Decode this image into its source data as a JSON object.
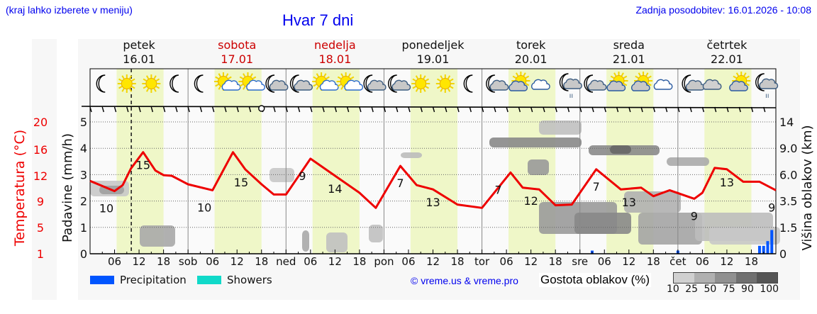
{
  "header": {
    "location_hint": "(kraj lahko izberete v meniju)",
    "title": "Hvar 7 dni",
    "updated": "Zadnja posodobitev: 16.01.2026 - 10:08"
  },
  "days": [
    {
      "name": "petek",
      "date": "16.01",
      "weekend": false,
      "short": ""
    },
    {
      "name": "sobota",
      "date": "17.01",
      "weekend": true,
      "short": "sob"
    },
    {
      "name": "nedelja",
      "date": "18.01",
      "weekend": true,
      "short": "ned"
    },
    {
      "name": "ponedeljek",
      "date": "19.01",
      "weekend": false,
      "short": "pon"
    },
    {
      "name": "torek",
      "date": "20.01",
      "weekend": false,
      "short": "tor"
    },
    {
      "name": "sreda",
      "date": "21.01",
      "weekend": false,
      "short": "sre"
    },
    {
      "name": "četrtek",
      "date": "22.01",
      "weekend": false,
      "short": "čet"
    }
  ],
  "weather_icons": [
    [
      "moon",
      "sun",
      "sun",
      "moon"
    ],
    [
      "moon",
      "sun-cloud",
      "sun-cloud",
      "moon-cloud"
    ],
    [
      "moon-cloud",
      "sun-cloud",
      "sun-cloud",
      "moon-cloud"
    ],
    [
      "moon-cloud",
      "sun",
      "sun",
      "moon"
    ],
    [
      "moon-cloud",
      "sun-cloud-grey",
      "cloud",
      "moon-cloud-rain"
    ],
    [
      "moon-cloud",
      "sun-cloud-grey",
      "sun-cloud-grey",
      "cloud"
    ],
    [
      "moon-cloud",
      "cloud-grey",
      "sun-cloud-grey",
      "moon-cloud-rain"
    ]
  ],
  "axes": {
    "left_temp_label": "Temperatura (°C)",
    "left_temp_ticks": [
      "20",
      "16",
      "12",
      "9",
      "5",
      "1"
    ],
    "precip_label": "Padavine (mm/h)",
    "precip_ticks": [
      "5",
      "4",
      "3",
      "2",
      "1",
      "0"
    ],
    "right_label": "Višina oblakov (km)",
    "right_ticks": [
      "14",
      "9.0",
      "6.0",
      "3.5",
      "1.5",
      "0"
    ],
    "hour_ticks": [
      "06",
      "12",
      "18"
    ]
  },
  "legend": {
    "precipitation": "Precipitation",
    "showers": "Showers",
    "precipitation_color": "#0055ff",
    "showers_color": "#11d9c9",
    "copyright": "© vreme.us & vreme.pro",
    "density_title": "Gostota oblakov (%)",
    "density_scale": [
      "10",
      "25",
      "50",
      "75",
      "90",
      "100"
    ],
    "density_colors": [
      "#d0d0d0",
      "#b0b0b0",
      "#909090",
      "#707070",
      "#555555"
    ]
  },
  "colors": {
    "temperature_line": "#ee0000",
    "daylight_band": "#eff7c8",
    "weekend_text": "#cc0000",
    "link_blue": "#0000ee"
  },
  "chart_data": {
    "type": "line",
    "title": "Hvar 7 dni",
    "xlabel": "",
    "ylabel": "Temperatura (°C)",
    "x_range_hours": [
      0,
      168
    ],
    "now_hour": 10.1,
    "series": [
      {
        "name": "Temperatura (°C)",
        "hours": [
          0,
          6,
          8,
          10,
          13,
          16,
          18,
          20,
          24,
          30,
          35,
          38,
          42,
          45,
          48,
          54,
          60,
          66,
          70,
          76,
          80,
          84,
          90,
          96,
          103,
          106,
          110,
          114,
          118,
          124,
          130,
          135,
          138,
          142,
          148,
          150,
          153,
          156,
          160,
          164,
          168
        ],
        "values": [
          11.4,
          10.2,
          10.9,
          13.1,
          15.6,
          12.8,
          12.1,
          12.0,
          11.0,
          10.3,
          15.6,
          13.0,
          11.0,
          9.8,
          9.8,
          14.6,
          12.0,
          10.0,
          8.0,
          13.5,
          10.9,
          10.4,
          8.5,
          8.0,
          12.5,
          10.6,
          10.4,
          8.4,
          8.5,
          13.0,
          10.4,
          10.6,
          9.6,
          10.3,
          9.3,
          10.0,
          13.2,
          13.0,
          11.3,
          11.3,
          10.3
        ]
      },
      {
        "name": "Padavine (mm/h)",
        "hours": [
          123,
          144,
          164,
          165,
          166,
          167
        ],
        "values": [
          0.02,
          0.02,
          0.05,
          0.05,
          0.08,
          0.15
        ]
      }
    ],
    "labels": [
      {
        "hour": 4,
        "value": "10"
      },
      {
        "hour": 13,
        "value": "15"
      },
      {
        "hour": 28,
        "value": "10"
      },
      {
        "hour": 37,
        "value": "15"
      },
      {
        "hour": 52,
        "value": "9"
      },
      {
        "hour": 60,
        "value": "14"
      },
      {
        "hour": 76,
        "value": "7"
      },
      {
        "hour": 84,
        "value": "13"
      },
      {
        "hour": 100,
        "value": "7"
      },
      {
        "hour": 108,
        "value": "12"
      },
      {
        "hour": 124,
        "value": "7"
      },
      {
        "hour": 132,
        "value": "13"
      },
      {
        "hour": 148,
        "value": "9"
      },
      {
        "hour": 156,
        "value": "13"
      },
      {
        "hour": 167,
        "value": "9"
      }
    ],
    "precip_ylim": [
      0,
      5
    ],
    "cloud_height_ticks_km": [
      0,
      1.5,
      3.5,
      6.0,
      9.0,
      14
    ],
    "grid": true
  }
}
